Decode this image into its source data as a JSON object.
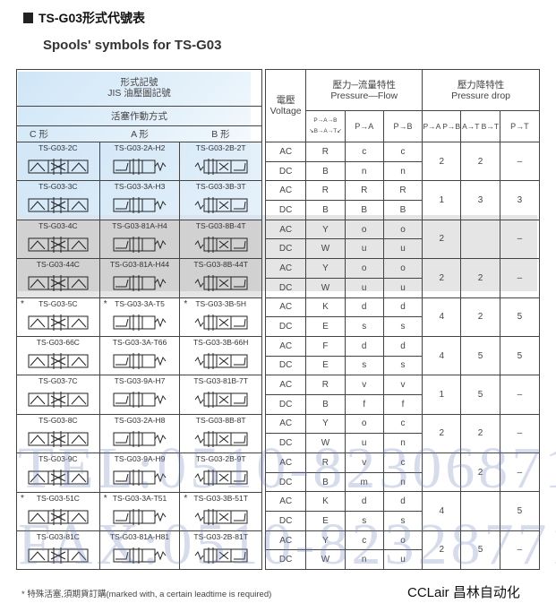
{
  "title": "TS-G03形式代號表",
  "subtitle": "Spools' symbols for TS-G03",
  "left_header": {
    "line1": "形式記號",
    "line2": "JIS 油壓圖記號",
    "actuation": "活塞作動方式",
    "types": [
      "C 形",
      "A 形",
      "B 形"
    ]
  },
  "right_header": {
    "voltage_cn": "電壓",
    "voltage_en": "Voltage",
    "pf_cn": "壓力─流量特性",
    "pf_en": "Pressure—Flow",
    "pd_cn": "壓力降特性",
    "pd_en": "Pressure drop",
    "pf_cols": [
      "P→A→B ↘B→A→T↙",
      "P→A",
      "P→B"
    ],
    "pd_cols": [
      "P→A P→B",
      "A→T B→T",
      "P→T"
    ]
  },
  "rows": [
    {
      "c": "TS-G03-2C",
      "a": "TS-G03-2A-H2",
      "b": "TS-G03-2B-2T",
      "star": false,
      "ac": [
        "AC",
        "R",
        "c",
        "c"
      ],
      "dc": [
        "DC",
        "B",
        "n",
        "n"
      ],
      "drop": [
        "2",
        "2",
        "–"
      ]
    },
    {
      "c": "TS-G03-3C",
      "a": "TS-G03-3A-H3",
      "b": "TS-G03-3B-3T",
      "star": false,
      "ac": [
        "AC",
        "R",
        "R",
        "R"
      ],
      "dc": [
        "DC",
        "B",
        "B",
        "B"
      ],
      "drop": [
        "1",
        "3",
        "3"
      ]
    },
    {
      "c": "TS-G03-4C",
      "a": "TS-G03-81A-H4",
      "b": "TS-G03-8B-4T",
      "star": false,
      "ac": [
        "AC",
        "Y",
        "o",
        "o"
      ],
      "dc": [
        "DC",
        "W",
        "u",
        "u"
      ],
      "drop": [
        "2",
        "",
        "–"
      ]
    },
    {
      "c": "TS-G03-44C",
      "a": "TS-G03-81A-H44",
      "b": "TS-G03-8B-44T",
      "star": false,
      "ac": [
        "AC",
        "Y",
        "o",
        "o"
      ],
      "dc": [
        "DC",
        "W",
        "u",
        "u"
      ],
      "drop": [
        "2",
        "2",
        "–"
      ]
    },
    {
      "c": "TS-G03-5C",
      "a": "TS-G03-3A-T5",
      "b": "TS-G03-3B-5H",
      "star": true,
      "ac": [
        "AC",
        "K",
        "d",
        "d"
      ],
      "dc": [
        "DC",
        "E",
        "s",
        "s"
      ],
      "drop": [
        "4",
        "2",
        "5"
      ]
    },
    {
      "c": "TS-G03-66C",
      "a": "TS-G03-3A-T66",
      "b": "TS-G03-3B-66H",
      "star": false,
      "ac": [
        "AC",
        "F",
        "d",
        "d"
      ],
      "dc": [
        "DC",
        "E",
        "s",
        "s"
      ],
      "drop": [
        "4",
        "5",
        "5"
      ]
    },
    {
      "c": "TS-G03-7C",
      "a": "TS-G03-9A-H7",
      "b": "TS-G03-81B-7T",
      "star": false,
      "ac": [
        "AC",
        "R",
        "v",
        "v"
      ],
      "dc": [
        "DC",
        "B",
        "f",
        "f"
      ],
      "drop": [
        "1",
        "5",
        "–"
      ]
    },
    {
      "c": "TS-G03-8C",
      "a": "TS-G03-2A-H8",
      "b": "TS-G03-8B-8T",
      "star": false,
      "ac": [
        "AC",
        "Y",
        "o",
        "c"
      ],
      "dc": [
        "DC",
        "W",
        "u",
        "n"
      ],
      "drop": [
        "2",
        "2",
        "–"
      ]
    },
    {
      "c": "TS-G03-9C",
      "a": "TS-G03-9A-H9",
      "b": "TS-G03-2B-9T",
      "star": false,
      "ac": [
        "AC",
        "R",
        "v",
        "c"
      ],
      "dc": [
        "DC",
        "B",
        "m",
        "n"
      ],
      "drop": [
        "",
        "2",
        "–"
      ]
    },
    {
      "c": "TS-G03-51C",
      "a": "TS-G03-3A-T51",
      "b": "TS-G03-3B-51T",
      "star": true,
      "ac": [
        "AC",
        "K",
        "d",
        "d"
      ],
      "dc": [
        "DC",
        "E",
        "s",
        "s"
      ],
      "drop": [
        "4",
        "",
        "5"
      ]
    },
    {
      "c": "TS-G03-81C",
      "a": "TS-G03-81A-H81",
      "b": "TS-G03-2B-81T",
      "star": false,
      "ac": [
        "AC",
        "Y",
        "c",
        "o"
      ],
      "dc": [
        "DC",
        "W",
        "n",
        "u"
      ],
      "drop": [
        "2",
        "5",
        "–"
      ]
    }
  ],
  "star_mark": "*",
  "footnote": "* 特殊活塞,須期貨訂購(marked with, a certain leadtime is required)",
  "brand": "CCLair 昌林自动化",
  "watermark": {
    "tel": "TEL:0510-82306871",
    "fax": "FAX:0510-82328771"
  }
}
